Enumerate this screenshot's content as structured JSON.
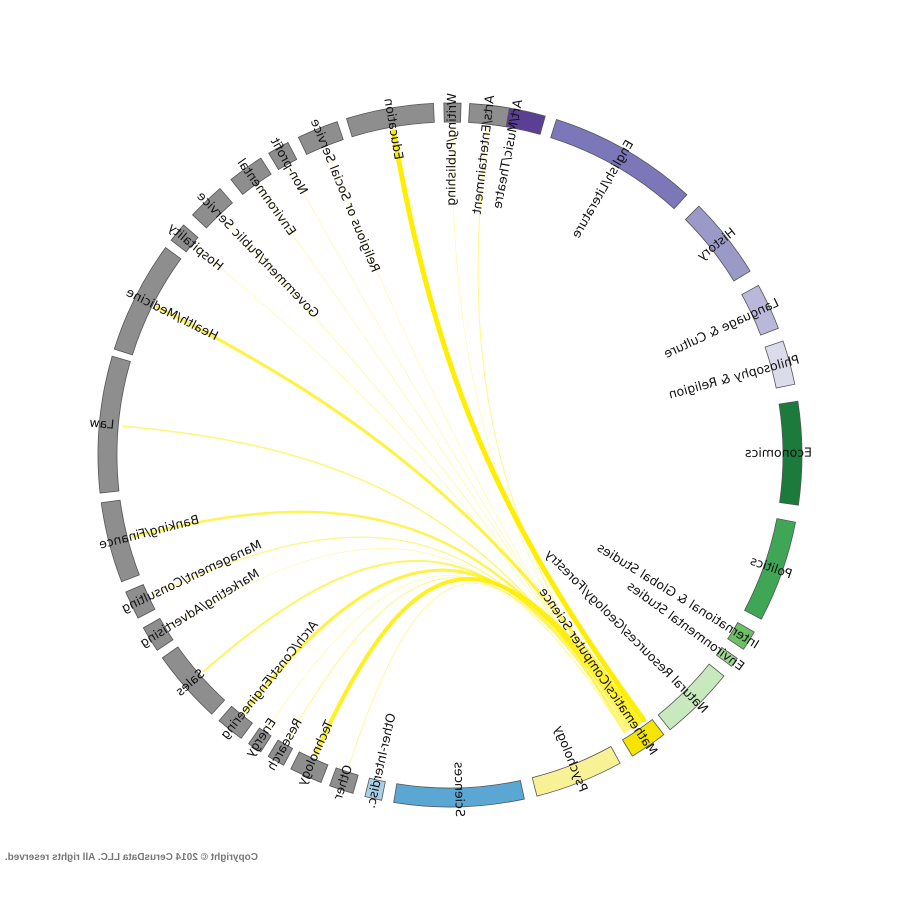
{
  "copyright": "Copyright © 2014 CerusData LLC.  All rights reserved.",
  "mirrored": true,
  "colors": {
    "career": "#8e8e8e",
    "ribbon": "#ffee00",
    "segment_outline": "#555555"
  },
  "chart_data": {
    "type": "chord",
    "source_group": "Mathematics/Computer Science",
    "groups": [
      {
        "label": "Art/Music/Theatre",
        "color": "#5b3f95",
        "side": "major"
      },
      {
        "label": "English/Literature",
        "color": "#7b77b8",
        "side": "major"
      },
      {
        "label": "History",
        "color": "#9b99c8",
        "side": "major"
      },
      {
        "label": "Language & Culture",
        "color": "#b9b8da",
        "side": "major"
      },
      {
        "label": "Philosophy & Religion",
        "color": "#dcdbec",
        "side": "major"
      },
      {
        "label": "Economics",
        "color": "#1b7a3c",
        "side": "major"
      },
      {
        "label": "Politics",
        "color": "#3ea655",
        "side": "major"
      },
      {
        "label": "International & Global Studies",
        "color": "#6dbf68",
        "side": "major"
      },
      {
        "label": "Environmental Studies",
        "color": "#9fd592",
        "side": "major"
      },
      {
        "label": "Natural Resources/Geology/Forestry",
        "color": "#c8e8bd",
        "side": "major"
      },
      {
        "label": "Mathematics/Computer Science",
        "color": "#f5e400",
        "side": "major"
      },
      {
        "label": "Psychology",
        "color": "#f9f195",
        "side": "major"
      },
      {
        "label": "Sciences",
        "color": "#5aa7d4",
        "side": "major"
      },
      {
        "label": "Other-Interdisc.",
        "color": "#a9cfe6",
        "side": "major"
      },
      {
        "label": "Other",
        "color": "#8e8e8e",
        "side": "career"
      },
      {
        "label": "Technology",
        "color": "#8e8e8e",
        "side": "career"
      },
      {
        "label": "Research",
        "color": "#8e8e8e",
        "side": "career"
      },
      {
        "label": "Energy",
        "color": "#8e8e8e",
        "side": "career"
      },
      {
        "label": "Arch/Const/Engineering",
        "color": "#8e8e8e",
        "side": "career"
      },
      {
        "label": "Sales",
        "color": "#8e8e8e",
        "side": "career"
      },
      {
        "label": "Marketing/Advertising",
        "color": "#8e8e8e",
        "side": "career"
      },
      {
        "label": "Management/Consulting",
        "color": "#8e8e8e",
        "side": "career"
      },
      {
        "label": "Banking/Finance",
        "color": "#8e8e8e",
        "side": "career"
      },
      {
        "label": "Law",
        "color": "#8e8e8e",
        "side": "career"
      },
      {
        "label": "Health/Medicine",
        "color": "#8e8e8e",
        "side": "career"
      },
      {
        "label": "Hospitality",
        "color": "#8e8e8e",
        "side": "career"
      },
      {
        "label": "Government/Public Service",
        "color": "#8e8e8e",
        "side": "career"
      },
      {
        "label": "Environmental",
        "color": "#8e8e8e",
        "side": "career"
      },
      {
        "label": "Non-profit",
        "color": "#8e8e8e",
        "side": "career"
      },
      {
        "label": "Religious or Social Service",
        "color": "#8e8e8e",
        "side": "career"
      },
      {
        "label": "Education",
        "color": "#8e8e8e",
        "side": "career"
      },
      {
        "label": "Writing/Publishing",
        "color": "#8e8e8e",
        "side": "career"
      },
      {
        "label": "Arts/Entertainment",
        "color": "#8e8e8e",
        "side": "career"
      }
    ],
    "flows": [
      {
        "to": "Education",
        "weight": 5
      },
      {
        "to": "Health/Medicine",
        "weight": 3
      },
      {
        "to": "Technology",
        "weight": 4
      },
      {
        "to": "Arch/Const/Engineering",
        "weight": 3
      },
      {
        "to": "Banking/Finance",
        "weight": 2.5
      },
      {
        "to": "Sales",
        "weight": 2
      },
      {
        "to": "Law",
        "weight": 1.5
      },
      {
        "to": "Management/Consulting",
        "weight": 1.2
      },
      {
        "to": "Arts/Entertainment",
        "weight": 1
      },
      {
        "to": "Research",
        "weight": 1
      },
      {
        "to": "Other",
        "weight": 0.8
      },
      {
        "to": "Government/Public Service",
        "weight": 0.7
      },
      {
        "to": "Environmental",
        "weight": 0.5
      },
      {
        "to": "Religious or Social Service",
        "weight": 0.5
      },
      {
        "to": "Non-profit",
        "weight": 0.4
      },
      {
        "to": "Hospitality",
        "weight": 0.4
      },
      {
        "to": "Marketing/Advertising",
        "weight": 0.4
      },
      {
        "to": "Writing/Publishing",
        "weight": 0.3
      },
      {
        "to": "Energy",
        "weight": 0.3
      }
    ]
  }
}
